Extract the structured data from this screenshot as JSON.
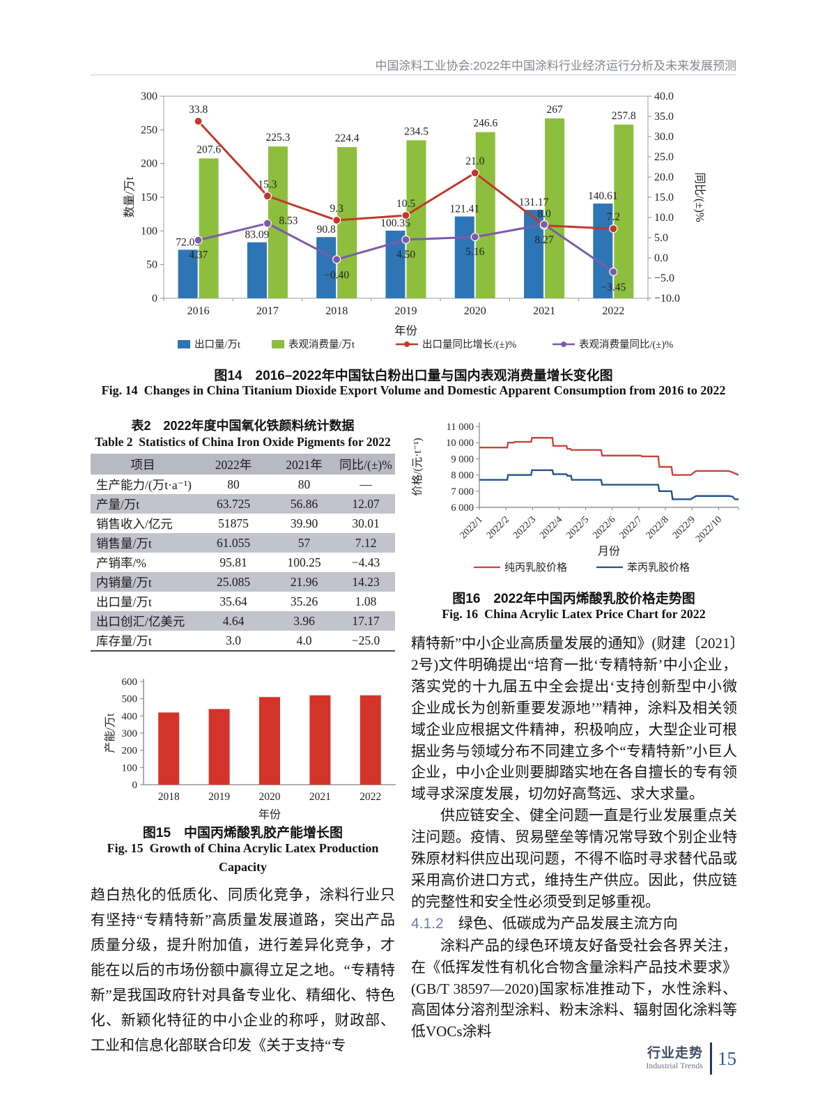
{
  "page": {
    "header_text": "中国涂料工业协会:2022年中国涂料行业经济运行分析及未来发展预测"
  },
  "fig14": {
    "caption_zh": "图14　2016–2022年中国钛白粉出口量与国内表观消费量增长变化图",
    "caption_en": "Fig. 14  Changes in China Titanium Dioxide Export Volume and Domestic Apparent Consumption from 2016 to 2022"
  },
  "table2": {
    "title_zh": "表2　2022年度中国氧化铁颜料统计数据",
    "title_en": "Table 2  Statistics of China Iron Oxide Pigments for 2022",
    "headers": [
      "项目",
      "2022年",
      "2021年",
      "同比/(±)%"
    ],
    "rows": [
      [
        "生产能力/(万t·a⁻¹)",
        "80",
        "80",
        "—"
      ],
      [
        "产量/万t",
        "63.725",
        "56.86",
        "12.07"
      ],
      [
        "销售收入/亿元",
        "51875",
        "39.90",
        "30.01"
      ],
      [
        "销售量/万t",
        "61.055",
        "57",
        "7.12"
      ],
      [
        "产销率/%",
        "95.81",
        "100.25",
        "−4.43"
      ],
      [
        "内销量/万t",
        "25.085",
        "21.96",
        "14.23"
      ],
      [
        "出口量/万t",
        "35.64",
        "35.26",
        "1.08"
      ],
      [
        "出口创汇/亿美元",
        "4.64",
        "3.96",
        "17.17"
      ],
      [
        "库存量/万t",
        "3.0",
        "4.0",
        "−25.0"
      ]
    ]
  },
  "fig15": {
    "caption_zh": "图15　中国丙烯酸乳胶产能增长图",
    "caption_en_line1": "Fig. 15  Growth of China Acrylic Latex Production",
    "caption_en_line2": "Capacity"
  },
  "fig16": {
    "caption_zh": "图16　2022年中国丙烯酸乳胶价格走势图",
    "caption_en": "Fig. 16  China Acrylic Latex Price Chart for 2022"
  },
  "left_column": {
    "paragraph": "趋白热化的低质化、同质化竞争，涂料行业只有坚持“专精特新”高质量发展道路，突出产品质量分级，提升附加值，进行差异化竞争，才能在以后的市场份额中赢得立足之地。“专精特新”是我国政府针对具备专业化、精细化、特色化、新颖化特征的中小企业的称呼，财政部、工业和信息化部联合印发《关于支持“专"
  },
  "right_column": {
    "paragraph1": "精特新”中小企业高质量发展的通知》(财建〔2021〕2号)文件明确提出“培育一批‘专精特新’中小企业，落实党的十九届五中全会提出‘支持创新型中小微企业成长为创新重要发源地’”精神，涂料及相关领域企业应根据文件精神，积极响应，大型企业可根据业务与领域分布不同建立多个“专精特新”小巨人企业，中小企业则要脚踏实地在各自擅长的专有领域寻求深度发展，切勿好高骛远、求大求量。",
    "paragraph2": "供应链安全、健全问题一直是行业发展重点关注问题。疫情、贸易壁垒等情况常导致个别企业特殊原材料供应出现问题，不得不临时寻求替代品或采用高价进口方式，维持生产供应。因此，供应链的完整性和安全性必须受到足够重视。",
    "section_number": "4.1.2",
    "section_title": "绿色、低碳成为产品发展主流方向",
    "paragraph3": "涂料产品的绿色环境友好备受社会各界关注，在《低挥发性有机化合物含量涂料产品技术要求》(GB/T 38597—2020)国家标准推动下，水性涂料、高固体分溶剂型涂料、粉末涂料、辐射固化涂料等低VOCs涂料"
  },
  "footer": {
    "section_zh": "行业走势",
    "section_en": "Industrial Trends",
    "page_number": "15"
  },
  "chart_data": [
    {
      "id": "fig14",
      "type": "combo_bar_line",
      "categories": [
        "2016",
        "2017",
        "2018",
        "2019",
        "2020",
        "2021",
        "2022"
      ],
      "xlabel": "年份",
      "left_axis": {
        "label": "数量/万t",
        "min": 0,
        "max": 300,
        "ticks": [
          "0",
          "50",
          "100",
          "150",
          "200",
          "250",
          "300"
        ]
      },
      "right_axis": {
        "label": "同比/(±)%",
        "min": -10,
        "max": 40,
        "ticks": [
          "−10.0",
          "−5.0",
          "0.0",
          "5.0",
          "10.0",
          "15.0",
          "20.0",
          "25.0",
          "30.0",
          "35.0",
          "40.0"
        ]
      },
      "series": [
        {
          "name": "出口量/万t",
          "type": "bar",
          "axis": "left",
          "color": "#2e75b6",
          "values": [
            "72.05",
            "83.09",
            "90.8",
            "100.35",
            "121.41",
            "131.17",
            "140.61"
          ]
        },
        {
          "name": "表观消费量/万t",
          "type": "bar",
          "axis": "left",
          "color": "#8dbe3d",
          "values": [
            "207.6",
            "225.3",
            "224.4",
            "234.5",
            "246.6",
            "267",
            "257.8"
          ]
        },
        {
          "name": "出口量同比增长/(±)%",
          "type": "line",
          "axis": "right",
          "color": "#c0392b",
          "values": [
            "33.8",
            "15.3",
            "9.3",
            "10.5",
            "21.0",
            "8.0",
            "7.2"
          ]
        },
        {
          "name": "表观消费量同比/(±)%",
          "type": "line",
          "axis": "right",
          "color": "#7a5ca8",
          "values": [
            "4.37",
            "8.53",
            "−0.40",
            "4.50",
            "5.16",
            "8.27",
            "−3.45"
          ]
        }
      ]
    },
    {
      "id": "fig15",
      "type": "bar",
      "categories": [
        "2018",
        "2019",
        "2020",
        "2021",
        "2022"
      ],
      "values": [
        420,
        440,
        510,
        520,
        520
      ],
      "bar_color": "#d2342a",
      "ylabel": "产能/万t",
      "xlabel": "年份",
      "ylim": [
        0,
        600
      ],
      "yticks": [
        "0",
        "100",
        "200",
        "300",
        "400",
        "500",
        "600"
      ]
    },
    {
      "id": "fig16",
      "type": "line",
      "ylabel": "价格/(元·t⁻¹)",
      "xlabel": "月份",
      "ylim": [
        6000,
        11000
      ],
      "yticks": [
        "6 000",
        "7 000",
        "8 000",
        "9 000",
        "10 000",
        "11 000"
      ],
      "xticks": [
        "2022/1",
        "2022/2",
        "2022/3",
        "2022/4",
        "2022/5",
        "2022/6",
        "2022/7",
        "2022/8",
        "2022/9",
        "2022/10"
      ],
      "xlim": [
        1,
        10.75
      ],
      "series": [
        {
          "name": "纯丙乳胶价格",
          "color": "#c5473c",
          "points": [
            [
              1,
              9700
            ],
            [
              2.05,
              9700
            ],
            [
              2.08,
              10000
            ],
            [
              2.3,
              10000
            ],
            [
              2.33,
              10050
            ],
            [
              2.95,
              10050
            ],
            [
              2.98,
              10300
            ],
            [
              3.75,
              10300
            ],
            [
              3.78,
              9800
            ],
            [
              4.28,
              9800
            ],
            [
              4.31,
              9620
            ],
            [
              4.43,
              9620
            ],
            [
              4.46,
              9550
            ],
            [
              5.58,
              9550
            ],
            [
              5.62,
              9200
            ],
            [
              7.08,
              9200
            ],
            [
              7.12,
              9150
            ],
            [
              7.73,
              9150
            ],
            [
              7.77,
              8500
            ],
            [
              8.23,
              8500
            ],
            [
              8.27,
              8000
            ],
            [
              8.95,
              8000
            ],
            [
              9.15,
              8250
            ],
            [
              10.38,
              8250
            ],
            [
              10.55,
              8150
            ],
            [
              10.75,
              8000
            ]
          ]
        },
        {
          "name": "苯丙乳胶价格",
          "color": "#20548c",
          "points": [
            [
              1,
              7700
            ],
            [
              2.05,
              7700
            ],
            [
              2.08,
              8000
            ],
            [
              2.95,
              8000
            ],
            [
              2.98,
              8300
            ],
            [
              3.75,
              8300
            ],
            [
              3.78,
              8050
            ],
            [
              4.28,
              8050
            ],
            [
              4.31,
              7950
            ],
            [
              4.45,
              7950
            ],
            [
              4.48,
              7700
            ],
            [
              5.58,
              7700
            ],
            [
              5.62,
              7400
            ],
            [
              7.73,
              7400
            ],
            [
              7.77,
              7000
            ],
            [
              8.23,
              7000
            ],
            [
              8.27,
              6500
            ],
            [
              8.95,
              6500
            ],
            [
              9.15,
              6700
            ],
            [
              10.38,
              6700
            ],
            [
              10.52,
              6670
            ],
            [
              10.62,
              6500
            ],
            [
              10.75,
              6500
            ]
          ]
        }
      ]
    }
  ]
}
